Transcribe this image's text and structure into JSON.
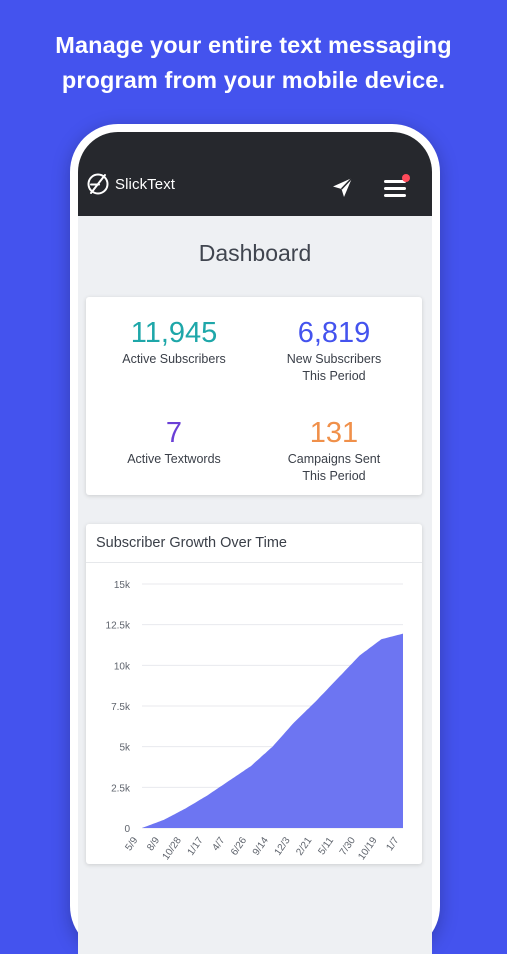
{
  "headline": {
    "line1": "Manage your entire text messaging",
    "line2": "program from your mobile device."
  },
  "app": {
    "brand": "SlickText",
    "icons": {
      "logo": "slicktext-logo-icon",
      "send": "paper-plane-icon",
      "menu": "hamburger-menu-icon"
    },
    "notification_color": "#ff4a5a"
  },
  "dashboard": {
    "title": "Dashboard",
    "stats": [
      {
        "value": "11,945",
        "label": "Active Subscribers",
        "color": "#1ea7a9"
      },
      {
        "value": "6,819",
        "label": "New Subscribers\nThis Period",
        "color": "#4453ee"
      },
      {
        "value": "7",
        "label": "Active Textwords",
        "color": "#6a3fd6"
      },
      {
        "value": "131",
        "label": "Campaigns Sent\nThis Period",
        "color": "#f0904a"
      }
    ]
  },
  "chart_data": {
    "type": "area",
    "title": "Subscriber Growth Over Time",
    "xlabel": "",
    "ylabel": "",
    "ylim": [
      0,
      15000
    ],
    "yticks": [
      "0",
      "2.5k",
      "5k",
      "7.5k",
      "10k",
      "12.5k",
      "15k"
    ],
    "x": [
      "5/9",
      "8/9",
      "10/28",
      "1/17",
      "4/7",
      "6/26",
      "9/14",
      "12/3",
      "2/21",
      "5/11",
      "7/30",
      "10/19",
      "1/7"
    ],
    "series": [
      {
        "values": [
          0,
          500,
          1200,
          2000,
          2900,
          3800,
          5000,
          6500,
          7800,
          9200,
          10600,
          11600,
          11950
        ]
      }
    ],
    "color": "#6d75f2",
    "grid": true
  }
}
